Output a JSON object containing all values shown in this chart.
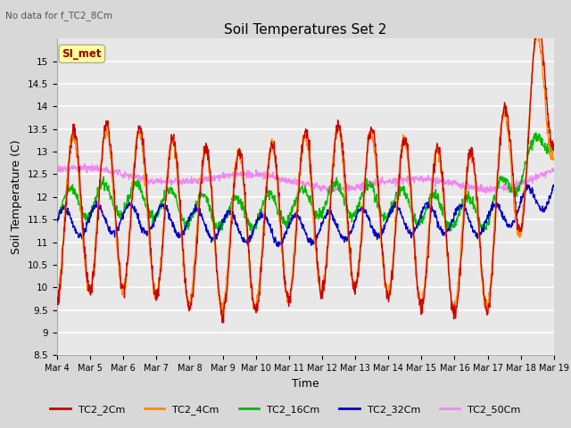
{
  "title": "Soil Temperatures Set 2",
  "xlabel": "Time",
  "ylabel": "Soil Temperature (C)",
  "ylim": [
    8.5,
    15.5
  ],
  "y_ticks": [
    8.5,
    9.0,
    9.5,
    10.0,
    10.5,
    11.0,
    11.5,
    12.0,
    12.5,
    13.0,
    13.5,
    14.0,
    14.5,
    15.0
  ],
  "x_tick_labels": [
    "Mar 4",
    "Mar 5",
    "Mar 6",
    "Mar 7",
    "Mar 8",
    "Mar 9",
    "Mar 10",
    "Mar 11",
    "Mar 12",
    "Mar 13",
    "Mar 14",
    "Mar 15",
    "Mar 16",
    "Mar 17",
    "Mar 18",
    "Mar 19"
  ],
  "series_colors": {
    "TC2_2Cm": "#cc0000",
    "TC2_4Cm": "#ff8800",
    "TC2_16Cm": "#00bb00",
    "TC2_32Cm": "#0000cc",
    "TC2_50Cm": "#ee88ee"
  },
  "legend_label": "SI_met",
  "no_data_text": "No data for f_TC2_8Cm",
  "legend_label_color": "#990000",
  "legend_box_color": "#ffff99"
}
